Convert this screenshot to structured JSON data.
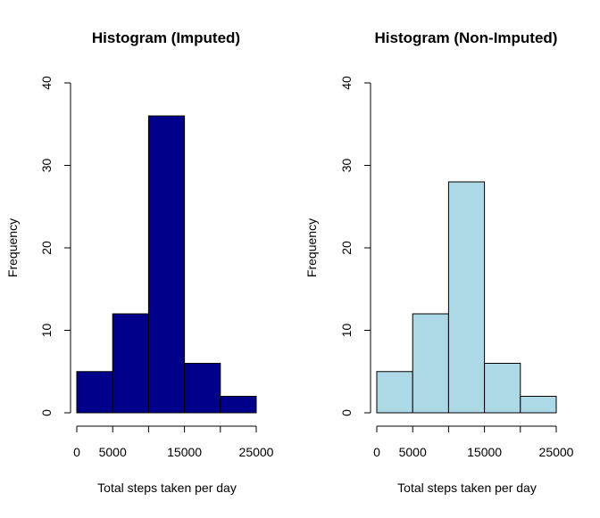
{
  "chart_data": [
    {
      "type": "bar",
      "title": "Histogram (Imputed)",
      "xlabel": "Total steps taken per day",
      "ylabel": "Frequency",
      "fill": "#00008B",
      "bins": [
        [
          0,
          5000
        ],
        [
          5000,
          10000
        ],
        [
          10000,
          15000
        ],
        [
          15000,
          20000
        ],
        [
          20000,
          25000
        ]
      ],
      "values": [
        5,
        12,
        36,
        6,
        2
      ],
      "xlim": [
        0,
        25000
      ],
      "ylim": [
        0,
        40
      ],
      "xticks": [
        0,
        5000,
        10000,
        15000,
        20000,
        25000
      ],
      "xtick_labels": [
        "0",
        "5000",
        "",
        "15000",
        "",
        "25000"
      ],
      "yticks": [
        0,
        10,
        20,
        30,
        40
      ],
      "ytick_labels": [
        "0",
        "10",
        "20",
        "30",
        "40"
      ],
      "grid": false
    },
    {
      "type": "bar",
      "title": "Histogram (Non-Imputed)",
      "xlabel": "Total steps taken per day",
      "ylabel": "Frequency",
      "fill": "#ADD8E6",
      "bins": [
        [
          0,
          5000
        ],
        [
          5000,
          10000
        ],
        [
          10000,
          15000
        ],
        [
          15000,
          20000
        ],
        [
          20000,
          25000
        ]
      ],
      "values": [
        5,
        12,
        28,
        6,
        2
      ],
      "xlim": [
        0,
        25000
      ],
      "ylim": [
        0,
        40
      ],
      "xticks": [
        0,
        5000,
        10000,
        15000,
        20000,
        25000
      ],
      "xtick_labels": [
        "0",
        "5000",
        "",
        "15000",
        "",
        "25000"
      ],
      "yticks": [
        0,
        10,
        20,
        30,
        40
      ],
      "ytick_labels": [
        "0",
        "10",
        "20",
        "30",
        "40"
      ],
      "grid": false
    }
  ]
}
